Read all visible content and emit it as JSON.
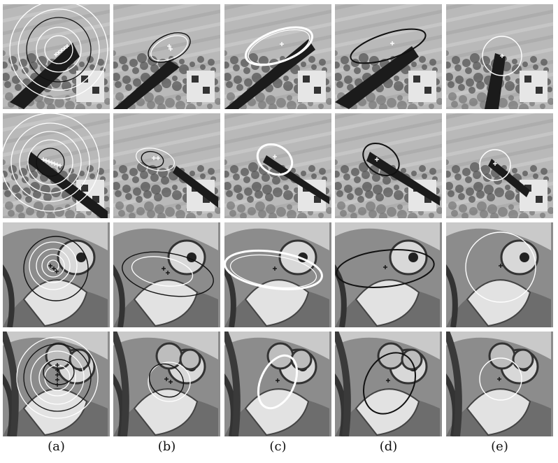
{
  "figure": {
    "column_labels": [
      "(a)",
      "(b)",
      "(c)",
      "(d)",
      "(e)"
    ],
    "rows": [
      {
        "scene": "building-dark-bar"
      },
      {
        "scene": "building-dark-bar-rotated"
      },
      {
        "scene": "graffiti-character"
      },
      {
        "scene": "graffiti-character-wide"
      }
    ],
    "colors": {
      "bright_ellipse": "#ffffff",
      "dark_ellipse": "#111111",
      "center_marker": "#ffffff"
    }
  }
}
